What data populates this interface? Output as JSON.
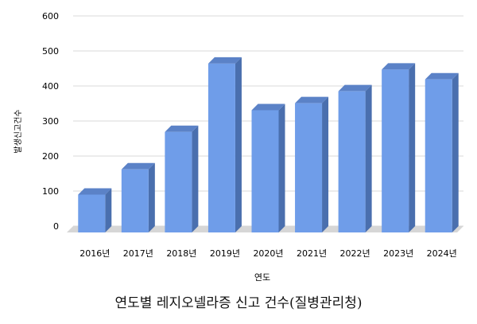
{
  "chart_data": {
    "type": "bar",
    "style": "3d-column",
    "categories": [
      "2016년",
      "2017년",
      "2018년",
      "2019년",
      "2020년",
      "2021년",
      "2022년",
      "2023년",
      "2024년"
    ],
    "values": [
      108,
      180,
      287,
      482,
      349,
      369,
      403,
      465,
      437
    ],
    "xlabel": "연도",
    "ylabel": "발생신고건수",
    "ylim": [
      0,
      600
    ],
    "yticks": [
      0,
      100,
      200,
      300,
      400,
      500,
      600
    ],
    "grid": true,
    "legend": "none",
    "caption": "연도별 레지오넬라증 신고 건수(질병관리청)"
  },
  "colors": {
    "bar_front": "#6f9de9",
    "bar_side": "#4a6fae",
    "bar_top": "#5b82c7",
    "floor": "#d6d6d6",
    "grid": "#d9d9d9"
  }
}
